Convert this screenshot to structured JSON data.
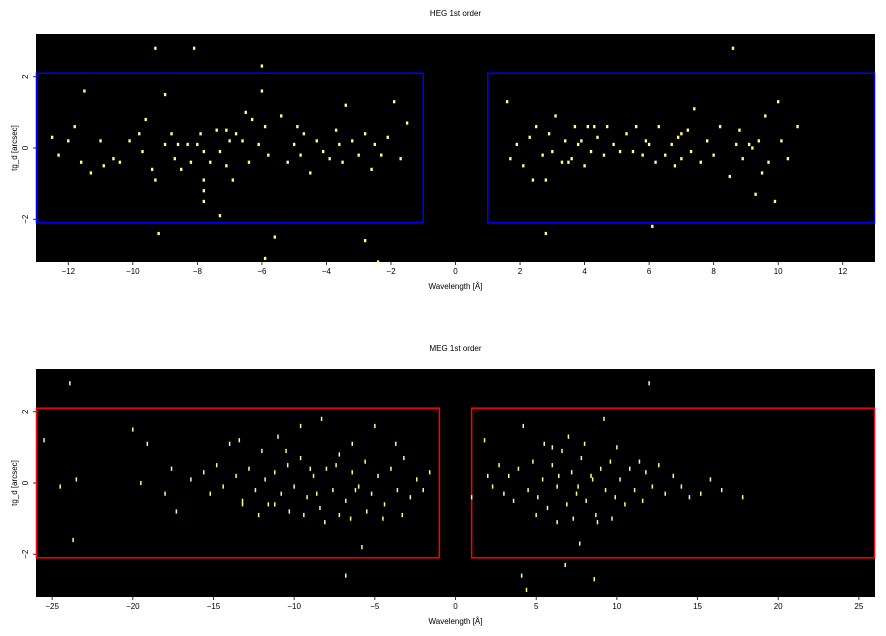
{
  "chart_data": [
    {
      "type": "scatter",
      "title": "HEG 1st order",
      "xlabel": "Wavelength [Å]",
      "ylabel": "tg_d [arcsec]",
      "xlim": [
        -13,
        13
      ],
      "ylim": [
        -3.2,
        3.2
      ],
      "xticks": [
        -12,
        -10,
        -8,
        -6,
        -4,
        -2,
        0,
        2,
        4,
        6,
        8,
        10,
        12
      ],
      "xticklabels": [
        "−12",
        "−10",
        "−8",
        "−6",
        "−4",
        "−2",
        "0",
        "2",
        "4",
        "6",
        "8",
        "10",
        "12"
      ],
      "yticks": [
        -2,
        0,
        2
      ],
      "yticklabels": [
        "−2",
        "0",
        "2"
      ],
      "background": "#000000",
      "point_color": "#ffff80",
      "region_color": "#0000ff",
      "regions": [
        {
          "x": [
            -13,
            -1
          ],
          "y": [
            -2.1,
            2.1
          ]
        },
        {
          "x": [
            1,
            13
          ],
          "y": [
            -2.1,
            2.1
          ]
        }
      ],
      "points": [
        [
          -12.5,
          0.3
        ],
        [
          -12.3,
          -0.2
        ],
        [
          -12.0,
          0.2
        ],
        [
          -11.8,
          0.6
        ],
        [
          -11.6,
          -0.4
        ],
        [
          -11.5,
          1.6
        ],
        [
          -11.3,
          -0.7
        ],
        [
          -11.0,
          0.2
        ],
        [
          -10.9,
          -0.5
        ],
        [
          -10.6,
          -0.3
        ],
        [
          -10.4,
          -0.4
        ],
        [
          -10.1,
          0.2
        ],
        [
          -9.8,
          0.4
        ],
        [
          -9.7,
          -0.1
        ],
        [
          -9.6,
          0.8
        ],
        [
          -9.4,
          -0.6
        ],
        [
          -9.3,
          -0.9
        ],
        [
          -9.0,
          0.1
        ],
        [
          -9.3,
          2.8
        ],
        [
          -9.0,
          1.5
        ],
        [
          -8.8,
          0.4
        ],
        [
          -8.7,
          -0.3
        ],
        [
          -8.5,
          -0.6
        ],
        [
          -8.3,
          0.1
        ],
        [
          -8.2,
          -0.4
        ],
        [
          -8.0,
          0.1
        ],
        [
          -7.9,
          0.4
        ],
        [
          -7.8,
          -0.1
        ],
        [
          -7.6,
          -0.4
        ],
        [
          -7.4,
          0.5
        ],
        [
          -7.3,
          -0.1
        ],
        [
          -7.1,
          -0.5
        ],
        [
          -7.0,
          0.2
        ],
        [
          -6.9,
          -0.9
        ],
        [
          -6.8,
          0.4
        ],
        [
          -6.6,
          0.2
        ],
        [
          -6.5,
          1.0
        ],
        [
          -6.4,
          -0.4
        ],
        [
          -6.3,
          0.8
        ],
        [
          -6.1,
          0.1
        ],
        [
          -5.9,
          0.6
        ],
        [
          -5.8,
          -0.2
        ],
        [
          -5.6,
          -2.5
        ],
        [
          -5.4,
          0.9
        ],
        [
          -5.2,
          -0.4
        ],
        [
          -5.0,
          0.1
        ],
        [
          -4.8,
          -0.2
        ],
        [
          -4.7,
          0.4
        ],
        [
          -4.5,
          -0.7
        ],
        [
          -4.3,
          0.2
        ],
        [
          -4.1,
          -0.1
        ],
        [
          -3.9,
          -0.3
        ],
        [
          -3.7,
          0.5
        ],
        [
          -3.5,
          -0.4
        ],
        [
          -3.4,
          1.2
        ],
        [
          -3.2,
          0.2
        ],
        [
          -3.0,
          -0.2
        ],
        [
          -2.8,
          0.4
        ],
        [
          -2.6,
          -0.6
        ],
        [
          -2.5,
          0.1
        ],
        [
          -2.3,
          -0.2
        ],
        [
          -2.1,
          0.3
        ],
        [
          -1.9,
          1.3
        ],
        [
          -1.7,
          -0.3
        ],
        [
          -1.5,
          0.7
        ],
        [
          -5.9,
          -3.1
        ],
        [
          -2.8,
          -2.6
        ],
        [
          -2.4,
          -3.2
        ],
        [
          -9.2,
          -2.4
        ],
        [
          -7.3,
          -1.9
        ],
        [
          -7.8,
          -1.5
        ],
        [
          -7.8,
          -1.2
        ],
        [
          -8.1,
          2.8
        ],
        [
          -6.0,
          2.3
        ],
        [
          -6.0,
          1.6
        ],
        [
          -7.8,
          -0.9
        ],
        [
          -8.6,
          0.1
        ],
        [
          -7.1,
          0.5
        ],
        [
          -3.6,
          0.1
        ],
        [
          -4.9,
          0.6
        ],
        [
          1.6,
          1.3
        ],
        [
          1.7,
          -0.3
        ],
        [
          1.9,
          0.1
        ],
        [
          2.1,
          -0.5
        ],
        [
          2.3,
          0.3
        ],
        [
          2.4,
          -0.9
        ],
        [
          2.5,
          0.6
        ],
        [
          2.7,
          -0.2
        ],
        [
          2.8,
          -0.9
        ],
        [
          2.9,
          0.4
        ],
        [
          3.0,
          -0.1
        ],
        [
          3.1,
          0.9
        ],
        [
          3.3,
          -0.4
        ],
        [
          3.4,
          0.2
        ],
        [
          3.6,
          -0.3
        ],
        [
          3.7,
          0.6
        ],
        [
          3.9,
          0.2
        ],
        [
          4.0,
          -0.5
        ],
        [
          4.1,
          0.6
        ],
        [
          4.2,
          -0.1
        ],
        [
          4.4,
          0.3
        ],
        [
          4.6,
          -0.2
        ],
        [
          4.7,
          0.6
        ],
        [
          4.9,
          0.1
        ],
        [
          5.1,
          -0.1
        ],
        [
          5.3,
          0.4
        ],
        [
          5.5,
          -0.1
        ],
        [
          5.6,
          0.6
        ],
        [
          5.8,
          -0.2
        ],
        [
          6.0,
          0.1
        ],
        [
          6.2,
          -0.4
        ],
        [
          6.3,
          0.6
        ],
        [
          6.5,
          -0.2
        ],
        [
          6.7,
          0.1
        ],
        [
          6.8,
          -0.5
        ],
        [
          6.9,
          0.3
        ],
        [
          7.0,
          -0.3
        ],
        [
          7.2,
          0.5
        ],
        [
          7.3,
          -0.1
        ],
        [
          7.4,
          1.1
        ],
        [
          7.6,
          -0.4
        ],
        [
          7.8,
          0.2
        ],
        [
          8.0,
          -0.2
        ],
        [
          8.2,
          0.6
        ],
        [
          8.5,
          -0.8
        ],
        [
          8.7,
          0.1
        ],
        [
          8.9,
          -0.3
        ],
        [
          9.1,
          0.1
        ],
        [
          9.3,
          -1.3
        ],
        [
          9.4,
          0.2
        ],
        [
          9.6,
          0.9
        ],
        [
          9.7,
          -0.4
        ],
        [
          9.9,
          -1.5
        ],
        [
          10.1,
          0.2
        ],
        [
          10.3,
          -0.3
        ],
        [
          10.6,
          0.6
        ],
        [
          9.5,
          -0.7
        ],
        [
          8.6,
          2.8
        ],
        [
          6.1,
          -2.2
        ],
        [
          2.8,
          -2.4
        ],
        [
          3.5,
          -0.4
        ],
        [
          3.8,
          0.1
        ],
        [
          4.3,
          0.6
        ],
        [
          5.9,
          0.2
        ],
        [
          7.0,
          0.4
        ],
        [
          9.2,
          0.0
        ],
        [
          10.0,
          1.3
        ],
        [
          8.8,
          0.5
        ]
      ]
    },
    {
      "type": "scatter",
      "title": "MEG 1st order",
      "xlabel": "Wavelength [Å]",
      "ylabel": "tg_d [arcsec]",
      "xlim": [
        -26,
        26
      ],
      "ylim": [
        -3.2,
        3.2
      ],
      "xticks": [
        -25,
        -20,
        -15,
        -10,
        -5,
        0,
        5,
        10,
        15,
        20,
        25
      ],
      "xticklabels": [
        "−25",
        "−20",
        "−15",
        "−10",
        "−5",
        "0",
        "5",
        "10",
        "15",
        "20",
        "25"
      ],
      "yticks": [
        -2,
        0,
        2
      ],
      "yticklabels": [
        "−2",
        "0",
        "2"
      ],
      "background": "#000000",
      "point_color": "#ffff80",
      "region_color": "#ff0000",
      "regions": [
        {
          "x": [
            -26,
            -1
          ],
          "y": [
            -2.1,
            2.1
          ]
        },
        {
          "x": [
            1,
            26
          ],
          "y": [
            -2.1,
            2.1
          ]
        }
      ],
      "points": [
        [
          -25.5,
          1.2
        ],
        [
          -24.5,
          -0.1
        ],
        [
          -23.9,
          2.8
        ],
        [
          -23.7,
          -1.6
        ],
        [
          -23.5,
          0.1
        ],
        [
          -20.0,
          1.5
        ],
        [
          -19.5,
          0.0
        ],
        [
          -19.1,
          1.1
        ],
        [
          -18.0,
          -0.3
        ],
        [
          -17.6,
          0.4
        ],
        [
          -17.3,
          -0.8
        ],
        [
          -16.4,
          0.1
        ],
        [
          -15.6,
          0.3
        ],
        [
          -15.2,
          -0.3
        ],
        [
          -14.8,
          0.5
        ],
        [
          -14.4,
          -0.1
        ],
        [
          -14.0,
          1.1
        ],
        [
          -13.6,
          0.2
        ],
        [
          -13.2,
          -0.5
        ],
        [
          -12.8,
          0.4
        ],
        [
          -12.4,
          -0.2
        ],
        [
          -12.0,
          0.9
        ],
        [
          -11.6,
          -0.6
        ],
        [
          -11.2,
          0.3
        ],
        [
          -10.8,
          -0.3
        ],
        [
          -10.4,
          0.5
        ],
        [
          -10.0,
          -0.1
        ],
        [
          -9.6,
          0.7
        ],
        [
          -9.2,
          -0.4
        ],
        [
          -8.8,
          0.2
        ],
        [
          -8.4,
          -0.7
        ],
        [
          -8.0,
          0.4
        ],
        [
          -7.6,
          -0.2
        ],
        [
          -7.2,
          0.8
        ],
        [
          -6.8,
          -0.5
        ],
        [
          -6.4,
          0.3
        ],
        [
          -6.0,
          -0.1
        ],
        [
          -5.6,
          0.6
        ],
        [
          -5.2,
          -0.3
        ],
        [
          -4.8,
          0.2
        ],
        [
          -4.4,
          -0.6
        ],
        [
          -4.0,
          0.4
        ],
        [
          -3.6,
          -0.2
        ],
        [
          -3.2,
          0.7
        ],
        [
          -2.8,
          -0.4
        ],
        [
          -2.4,
          0.1
        ],
        [
          -2.0,
          -0.2
        ],
        [
          -1.6,
          0.3
        ],
        [
          -13.4,
          1.2
        ],
        [
          -11.0,
          1.3
        ],
        [
          -9.6,
          1.6
        ],
        [
          -8.3,
          1.8
        ],
        [
          -6.4,
          1.1
        ],
        [
          -5.0,
          1.6
        ],
        [
          -3.7,
          1.1
        ],
        [
          -13.2,
          -0.6
        ],
        [
          -12.2,
          -0.9
        ],
        [
          -11.2,
          -0.6
        ],
        [
          -10.3,
          -0.8
        ],
        [
          -9.4,
          -0.9
        ],
        [
          -8.1,
          -1.1
        ],
        [
          -7.2,
          -0.9
        ],
        [
          -6.5,
          -1.0
        ],
        [
          -5.5,
          -0.8
        ],
        [
          -4.5,
          -1.0
        ],
        [
          -3.3,
          -0.9
        ],
        [
          -5.8,
          -1.8
        ],
        [
          -6.8,
          -2.6
        ],
        [
          -10.5,
          0.9
        ],
        [
          -9.0,
          0.4
        ],
        [
          -7.4,
          0.5
        ],
        [
          -6.2,
          -0.2
        ],
        [
          -11.8,
          0.1
        ],
        [
          -8.6,
          -0.3
        ],
        [
          1.0,
          -0.4
        ],
        [
          1.8,
          1.2
        ],
        [
          2.0,
          0.2
        ],
        [
          2.3,
          -0.1
        ],
        [
          2.7,
          0.5
        ],
        [
          3.0,
          -0.3
        ],
        [
          3.3,
          0.2
        ],
        [
          3.6,
          -0.5
        ],
        [
          3.9,
          0.4
        ],
        [
          4.2,
          1.6
        ],
        [
          4.5,
          -0.2
        ],
        [
          4.8,
          0.6
        ],
        [
          5.1,
          -0.4
        ],
        [
          5.4,
          0.1
        ],
        [
          5.7,
          -0.7
        ],
        [
          6.0,
          0.5
        ],
        [
          6.3,
          -0.1
        ],
        [
          6.6,
          0.9
        ],
        [
          6.9,
          -0.6
        ],
        [
          7.2,
          0.3
        ],
        [
          7.5,
          -0.3
        ],
        [
          7.8,
          0.7
        ],
        [
          8.1,
          -0.5
        ],
        [
          8.4,
          0.2
        ],
        [
          8.7,
          -0.9
        ],
        [
          9.0,
          0.4
        ],
        [
          9.3,
          -0.2
        ],
        [
          9.6,
          0.6
        ],
        [
          9.9,
          -0.4
        ],
        [
          10.2,
          0.1
        ],
        [
          10.5,
          -0.6
        ],
        [
          10.8,
          0.4
        ],
        [
          11.1,
          -0.2
        ],
        [
          11.4,
          0.6
        ],
        [
          11.8,
          0.3
        ],
        [
          12.2,
          -0.1
        ],
        [
          12.6,
          0.5
        ],
        [
          13.0,
          -0.3
        ],
        [
          13.5,
          0.2
        ],
        [
          14.0,
          -0.1
        ],
        [
          14.5,
          -0.4
        ],
        [
          15.2,
          -0.3
        ],
        [
          15.8,
          0.1
        ],
        [
          16.5,
          -0.2
        ],
        [
          17.8,
          -0.4
        ],
        [
          12.0,
          2.8
        ],
        [
          9.2,
          1.8
        ],
        [
          4.1,
          -2.6
        ],
        [
          4.4,
          -3.0
        ],
        [
          6.8,
          -2.3
        ],
        [
          8.6,
          -2.7
        ],
        [
          7.7,
          -1.7
        ],
        [
          6.0,
          1.0
        ],
        [
          7.0,
          1.3
        ],
        [
          8.0,
          1.1
        ],
        [
          10.0,
          1.0
        ],
        [
          5.5,
          1.1
        ],
        [
          6.3,
          -1.1
        ],
        [
          7.3,
          -1.0
        ],
        [
          8.8,
          -1.1
        ],
        [
          9.7,
          -1.0
        ],
        [
          5.0,
          -0.9
        ],
        [
          7.6,
          -0.1
        ],
        [
          6.4,
          0.2
        ],
        [
          8.5,
          0.1
        ],
        [
          11.6,
          -0.5
        ]
      ]
    }
  ]
}
